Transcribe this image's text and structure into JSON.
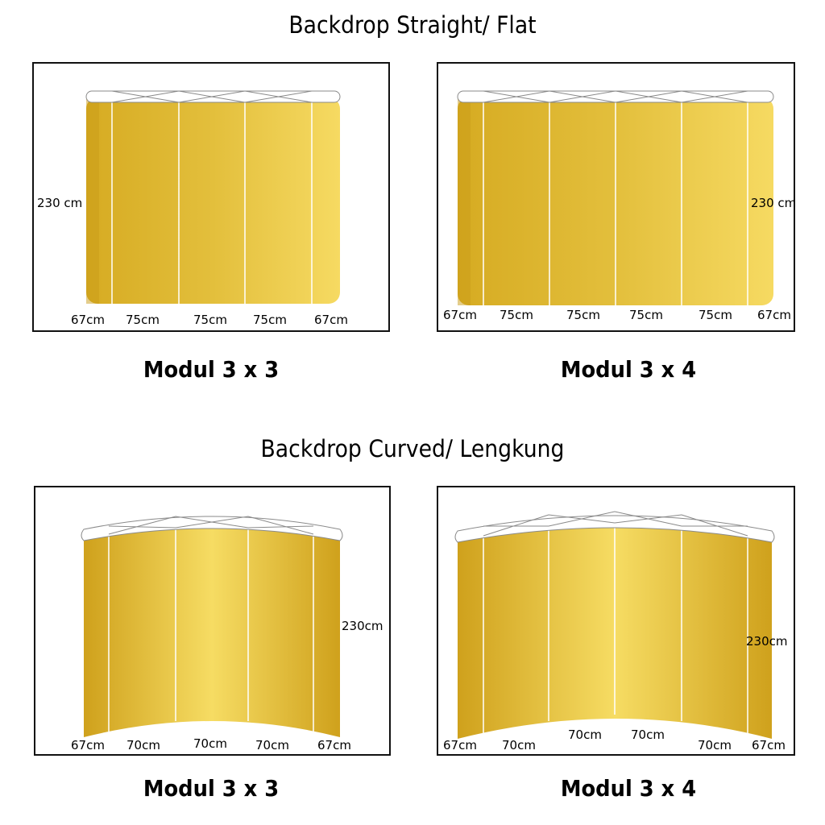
{
  "sections": {
    "flat_title": "Backdrop Straight/ Flat",
    "curved_title": "Backdrop Curved/ Lengkung"
  },
  "modules": {
    "flat_3x3": {
      "caption": "Modul 3 x 3",
      "height_label": "230 cm",
      "widths": [
        "67cm",
        "75cm",
        "75cm",
        "75cm",
        "67cm"
      ]
    },
    "flat_3x4": {
      "caption": "Modul 3 x 4",
      "height_label": "230 cm",
      "widths": [
        "67cm",
        "75cm",
        "75cm",
        "75cm",
        "75cm",
        "67cm"
      ]
    },
    "curved_3x3": {
      "caption": "Modul 3 x 3",
      "height_label": "230cm",
      "widths": [
        "67cm",
        "70cm",
        "70cm",
        "70cm",
        "67cm"
      ]
    },
    "curved_3x4": {
      "caption": "Modul 3 x 4",
      "height_label": "230cm",
      "widths": [
        "67cm",
        "70cm",
        "70cm",
        "70cm",
        "70cm",
        "67cm"
      ]
    }
  },
  "colors": {
    "panel_gold": "#dfb935",
    "panel_light": "#f4d85a",
    "seam": "#ffffff",
    "frame": "#8a8a8a"
  }
}
